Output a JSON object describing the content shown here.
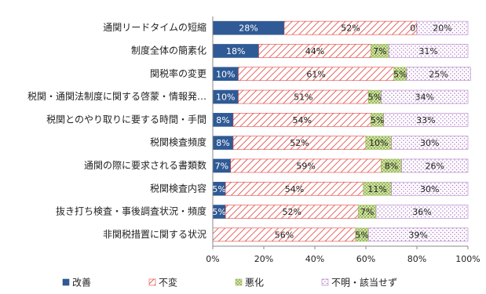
{
  "chart_data": {
    "type": "stacked-bar-horizontal",
    "categories": [
      "通関リードタイムの短縮",
      "制度全体の簡素化",
      "関税率の変更",
      "税関・通関法制度に関する啓蒙・情報発…",
      "税関とのやり取りに要する時間・手間",
      "税関検査頻度",
      "通関の際に要求される書類数",
      "税関検査内容",
      "抜き打ち検査・事後調査状況・頻度",
      "非関税措置に関する状況"
    ],
    "series": [
      {
        "name": "改善",
        "color": "#2f5a95",
        "values": [
          28,
          18,
          10,
          10,
          8,
          8,
          7,
          5,
          5,
          0
        ],
        "value_labels": [
          "28%",
          "18%",
          "10%",
          "10%",
          "8%",
          "8%",
          "7%",
          "5%",
          "5%",
          null
        ]
      },
      {
        "name": "不変",
        "color": "#e0413c",
        "values": [
          52,
          44,
          61,
          51,
          54,
          52,
          59,
          54,
          52,
          56
        ],
        "value_labels": [
          "52%",
          "44%",
          "61%",
          "51%",
          "54%",
          "52%",
          "59%",
          "54%",
          "52%",
          "56%"
        ]
      },
      {
        "name": "悪化",
        "color": "#9bbb59",
        "values": [
          0,
          7,
          5,
          5,
          5,
          10,
          8,
          11,
          7,
          5
        ],
        "value_labels": [
          "0%",
          "7%",
          "5%",
          "5%",
          "5%",
          "10%",
          "8%",
          "11%",
          "7%",
          "5%"
        ]
      },
      {
        "name": "不明・該当せず",
        "color": "#b07cc6",
        "values": [
          20,
          31,
          25,
          34,
          33,
          30,
          26,
          30,
          36,
          39
        ],
        "value_labels": [
          "20%",
          "31%",
          "25%",
          "34%",
          "33%",
          "30%",
          "26%",
          "30%",
          "36%",
          "39%"
        ]
      }
    ],
    "xlim": [
      0,
      100
    ],
    "xticks": [
      {
        "value": 0,
        "label": "0%"
      },
      {
        "value": 20,
        "label": "20%"
      },
      {
        "value": 40,
        "label": "40%"
      },
      {
        "value": 60,
        "label": "60%"
      },
      {
        "value": 80,
        "label": "80%"
      },
      {
        "value": 100,
        "label": "100%"
      }
    ],
    "grid": false,
    "legend": "bottom"
  }
}
